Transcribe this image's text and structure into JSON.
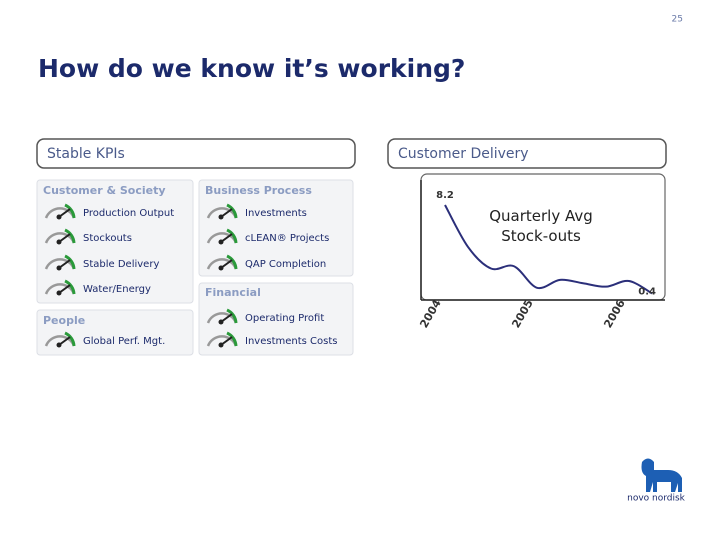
{
  "page_number": "25",
  "title": "How do we know it’s working?",
  "left_panel": {
    "label": "Stable KPIs",
    "groups": [
      {
        "name": "Customer & Society",
        "items": [
          "Production Output",
          "Stockouts",
          "Stable Delivery",
          "Water/Energy"
        ]
      },
      {
        "name": "Business Process",
        "items": [
          "Investments",
          "cLEAN® Projects",
          "QAP Completion"
        ]
      },
      {
        "name": "Financial",
        "items": [
          "Operating Profit",
          "Investments Costs"
        ]
      },
      {
        "name": "People",
        "items": [
          "Global Perf. Mgt."
        ]
      }
    ]
  },
  "right_panel": {
    "label": "Customer Delivery"
  },
  "chart_data": {
    "type": "line",
    "title": "Quarterly Avg Stock-outs",
    "categories": [
      "2004",
      null,
      null,
      null,
      "2005",
      null,
      null,
      null,
      "2006",
      null
    ],
    "values": [
      8.2,
      4.5,
      2.6,
      2.8,
      0.9,
      1.6,
      1.3,
      1.0,
      1.5,
      0.4
    ],
    "color": "#2b2f7a"
  },
  "logo": {
    "text": "novo nordisk"
  }
}
